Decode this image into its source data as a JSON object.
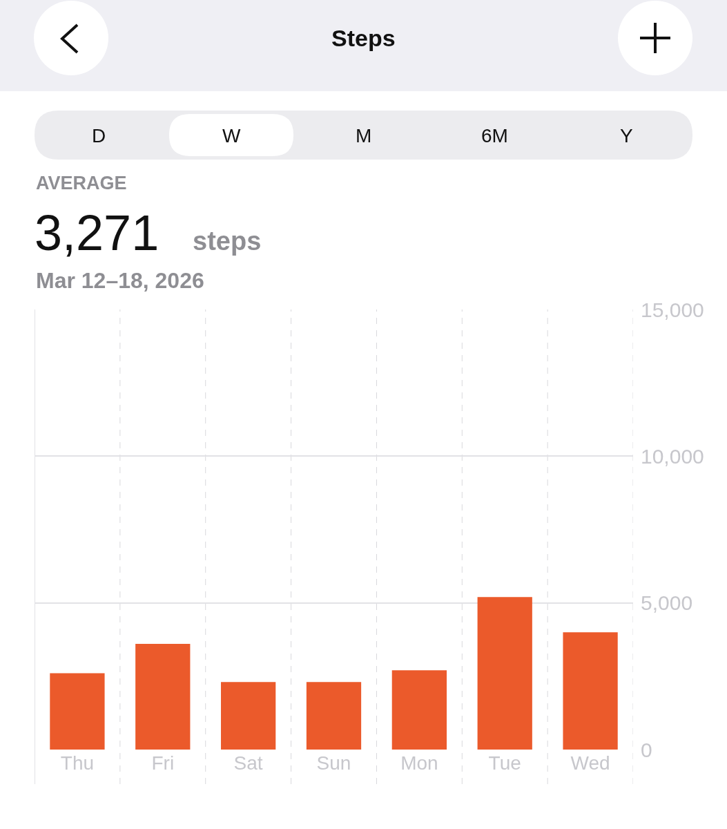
{
  "chart_data": {
    "type": "bar",
    "title": "Steps",
    "subtitle": "Mar 12–18, 2026",
    "annotations": [
      "D",
      "W",
      "M",
      "6M",
      "Y",
      "AVERAGE",
      "3,271",
      "steps"
    ],
    "categories": [
      "Thu",
      "Fri",
      "Sat",
      "Sun",
      "Mon",
      "Tue",
      "Wed"
    ],
    "values": [
      2600,
      3600,
      2300,
      2300,
      2700,
      5200,
      4000
    ],
    "color": "#eb5a2b",
    "ylim": [
      0,
      15000
    ],
    "yticks": [
      0,
      {
        "value": 5000,
        "label": "5,000"
      },
      {
        "value": 10000,
        "label": "10,000"
      },
      {
        "value": 15000,
        "label": "15,000"
      }
    ],
    "grid": true
  }
}
